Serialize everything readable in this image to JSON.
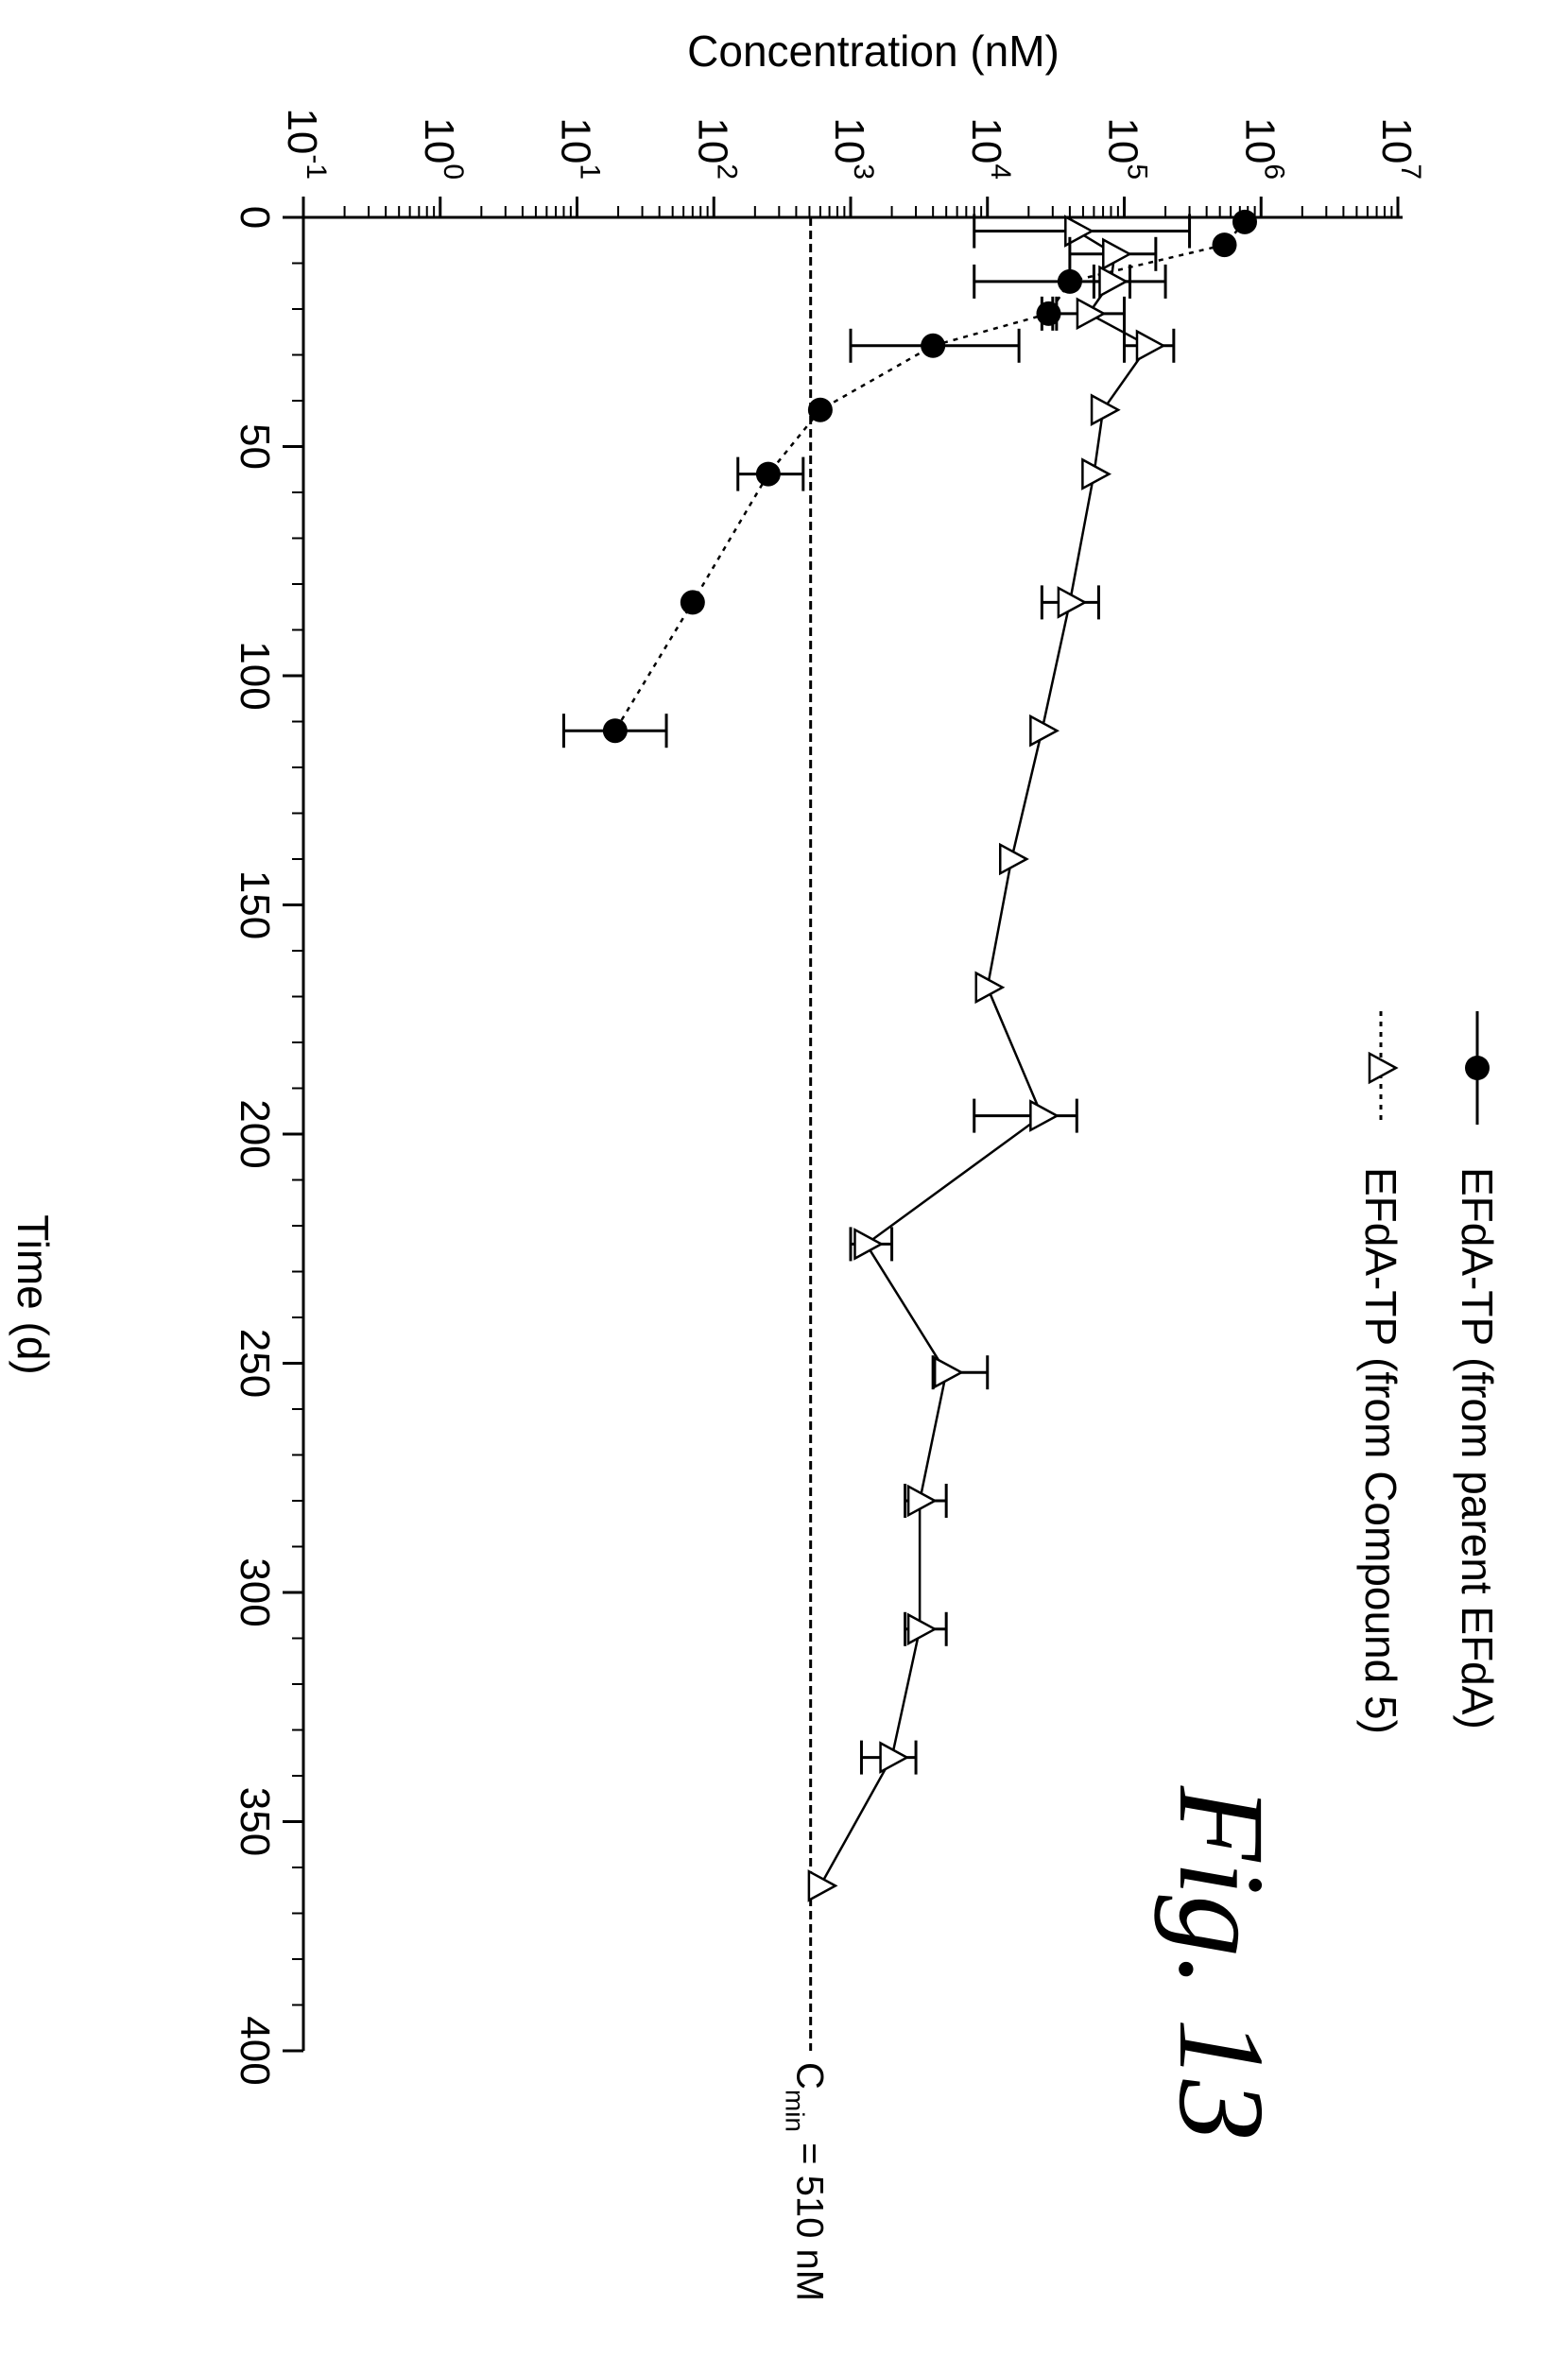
{
  "figure_label": "Fig. 13",
  "chart_data": {
    "type": "scatter",
    "xlabel": "Time (d)",
    "ylabel": "Concentration (nM)",
    "xlim": [
      0,
      400
    ],
    "xticks": [
      "0",
      "50",
      "100",
      "150",
      "200",
      "250",
      "300",
      "350",
      "400"
    ],
    "yscale": "log",
    "ylim_exponent": [
      -1,
      7
    ],
    "yticks": [
      {
        "base": "10",
        "exp": "-1"
      },
      {
        "base": "10",
        "exp": "0"
      },
      {
        "base": "10",
        "exp": "1"
      },
      {
        "base": "10",
        "exp": "2"
      },
      {
        "base": "10",
        "exp": "3"
      },
      {
        "base": "10",
        "exp": "4"
      },
      {
        "base": "10",
        "exp": "5"
      },
      {
        "base": "10",
        "exp": "6"
      },
      {
        "base": "10",
        "exp": "7"
      }
    ],
    "grid": false,
    "legend_position": "top-left",
    "reference_line": {
      "y": 510,
      "label_main": "C",
      "label_sub": "min",
      "label_rest": " = 510 nM"
    },
    "series": [
      {
        "name": "EFdA-TP (from parent EFdA)",
        "marker": "filled-circle",
        "line": "dotted",
        "points": [
          {
            "x": 1,
            "y": 760000
          },
          {
            "x": 6,
            "y": 540000
          },
          {
            "x": 14,
            "y": 40000,
            "err_low": 8000,
            "err_high": 200000
          },
          {
            "x": 21,
            "y": 28000,
            "err_low": 25000,
            "err_high": 32000
          },
          {
            "x": 28,
            "y": 4000,
            "err_low": 1000,
            "err_high": 17000
          },
          {
            "x": 42,
            "y": 600
          },
          {
            "x": 56,
            "y": 250,
            "err_low": 150,
            "err_high": 450
          },
          {
            "x": 84,
            "y": 70
          },
          {
            "x": 112,
            "y": 19,
            "err_low": 8,
            "err_high": 45
          }
        ]
      },
      {
        "name": "EFdA-TP (from Compound 5)",
        "marker": "open-triangle",
        "line": "solid",
        "points": [
          {
            "x": 3,
            "y": 45000,
            "err_low": 8000,
            "err_high": 300000
          },
          {
            "x": 8,
            "y": 85000,
            "err_low": 40000,
            "err_high": 170000
          },
          {
            "x": 14,
            "y": 80000,
            "err_low": 60000,
            "err_high": 110000
          },
          {
            "x": 21,
            "y": 55000,
            "err_low": 30000,
            "err_high": 100000
          },
          {
            "x": 28,
            "y": 150000,
            "err_low": 100000,
            "err_high": 230000
          },
          {
            "x": 42,
            "y": 70000
          },
          {
            "x": 56,
            "y": 60000
          },
          {
            "x": 84,
            "y": 40000,
            "err_low": 25000,
            "err_high": 65000
          },
          {
            "x": 112,
            "y": 25000
          },
          {
            "x": 140,
            "y": 15000
          },
          {
            "x": 168,
            "y": 10000
          },
          {
            "x": 196,
            "y": 25000,
            "err_low": 8000,
            "err_high": 45000
          },
          {
            "x": 224,
            "y": 1300,
            "err_low": 1000,
            "err_high": 2000
          },
          {
            "x": 252,
            "y": 5000,
            "err_low": 4000,
            "err_high": 10000
          },
          {
            "x": 280,
            "y": 3200,
            "err_low": 2500,
            "err_high": 5000
          },
          {
            "x": 308,
            "y": 3200,
            "err_low": 2500,
            "err_high": 5000
          },
          {
            "x": 336,
            "y": 2000,
            "err_low": 1200,
            "err_high": 3000
          },
          {
            "x": 364,
            "y": 600
          }
        ]
      }
    ]
  },
  "colors": {
    "ink": "#000000",
    "background": "#ffffff"
  }
}
